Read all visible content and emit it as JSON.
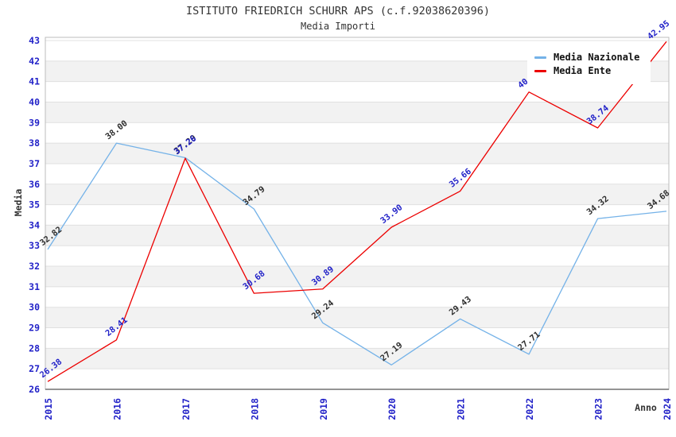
{
  "title": "ISTITUTO FRIEDRICH SCHURR APS (c.f.92038620396)",
  "subtitle": "Media Importi",
  "y_axis": {
    "label": "Media"
  },
  "x_axis": {
    "label": "Anno"
  },
  "legend": {
    "items": [
      {
        "label": "Media Nazionale",
        "color": "#74b2e8"
      },
      {
        "label": "Media Ente",
        "color": "#ec0000"
      }
    ]
  },
  "chart_data": {
    "type": "line",
    "x": [
      2015,
      2016,
      2017,
      2018,
      2019,
      2020,
      2021,
      2022,
      2023,
      2024
    ],
    "series": [
      {
        "name": "Media Nazionale",
        "color": "#74b2e8",
        "label_color": "#2e2e2e",
        "values": [
          32.82,
          38.0,
          37.29,
          34.79,
          29.24,
          27.19,
          29.43,
          27.71,
          34.32,
          34.68
        ]
      },
      {
        "name": "Media Ente",
        "color": "#ec0000",
        "label_color": "#2222c8",
        "values": [
          26.38,
          28.41,
          37.26,
          30.68,
          30.89,
          33.9,
          35.66,
          40.49,
          38.74,
          42.95
        ]
      }
    ],
    "title": "ISTITUTO FRIEDRICH SCHURR APS (c.f.92038620396)",
    "subtitle": "Media Importi",
    "xlabel": "Anno",
    "ylabel": "Media",
    "ylim": [
      26,
      43
    ],
    "y_step": 1,
    "grid": true,
    "banded_background": true,
    "xtick_rotation": -90,
    "point_label_rotation": -38,
    "point_label_decimals": 2,
    "legend_position": "top-right",
    "style": {
      "band_color": "#f2f2f2",
      "grid_color": "#e0e0e0",
      "border_color": "#bcbcbc",
      "axis_line_color": "#555555",
      "tick_label_color": "#2222c8",
      "title_color": "#333333"
    }
  }
}
